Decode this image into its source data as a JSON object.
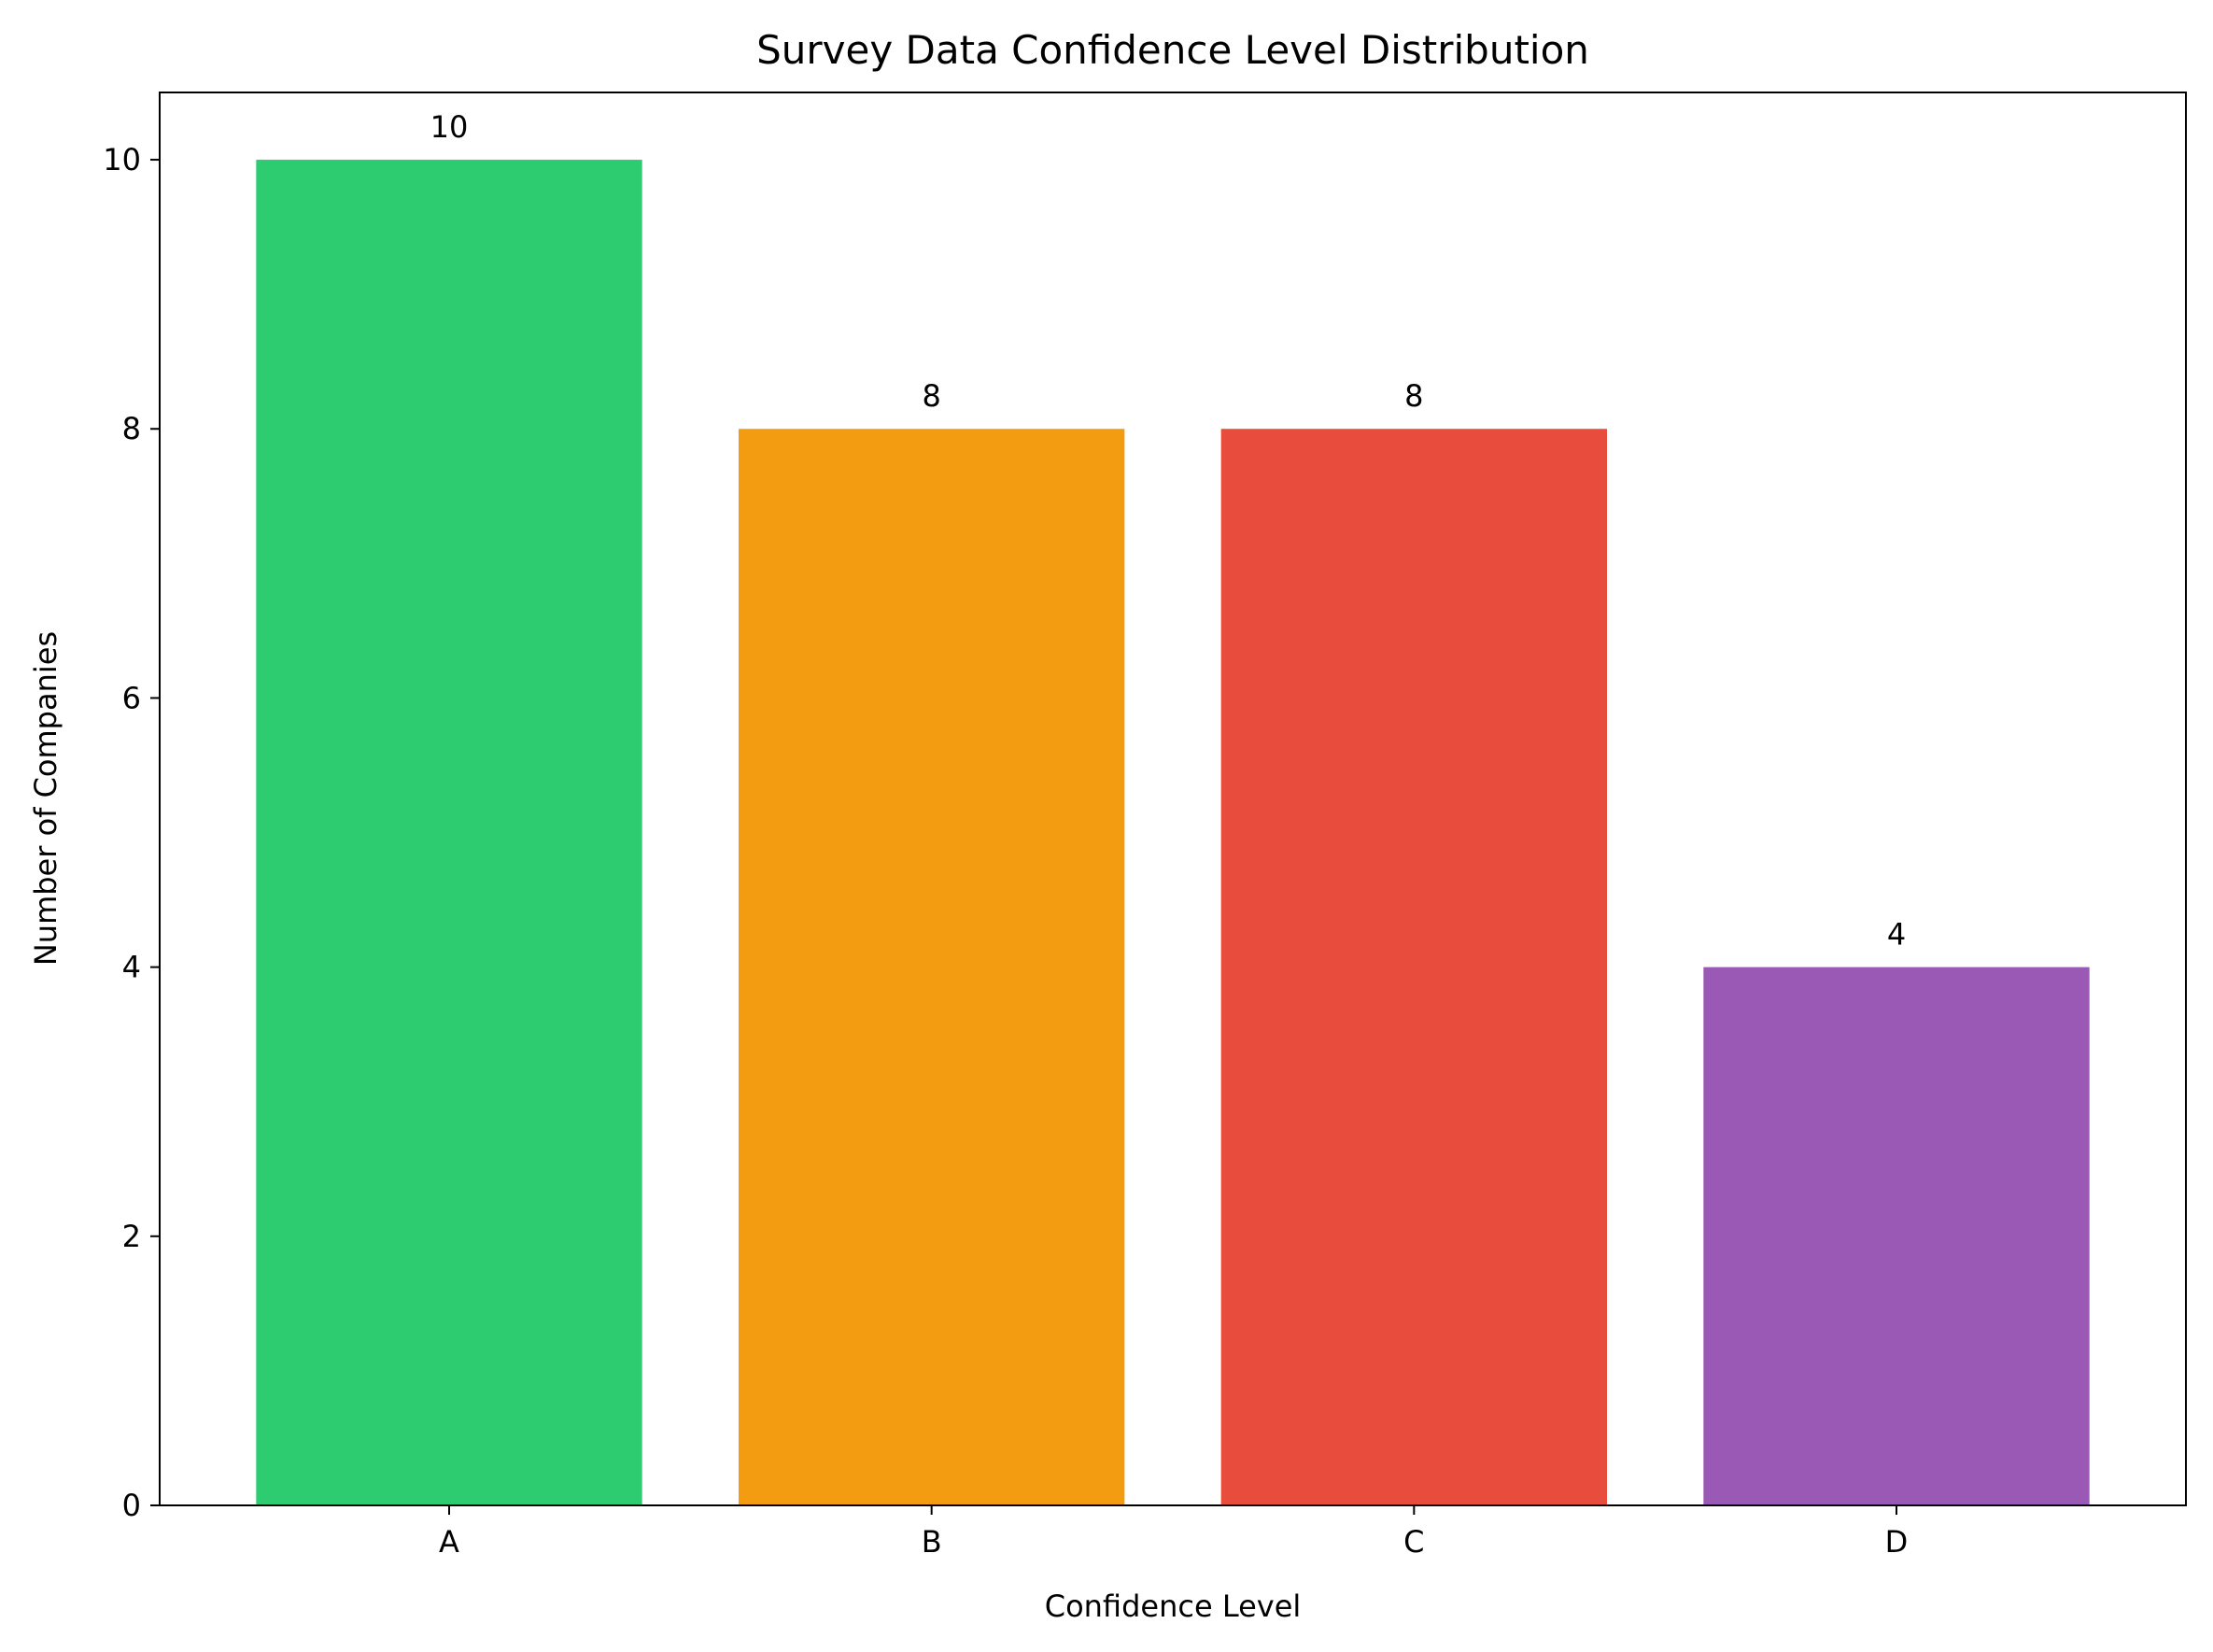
{
  "chart_data": {
    "type": "bar",
    "title": "Survey Data Confidence Level Distribution",
    "xlabel": "Confidence Level",
    "ylabel": "Number of Companies",
    "categories": [
      "A",
      "B",
      "C",
      "D"
    ],
    "values": [
      10,
      8,
      8,
      4
    ],
    "value_labels": [
      "10",
      "8",
      "8",
      "4"
    ],
    "colors": [
      "#2ecc71",
      "#f39c12",
      "#e74c3c",
      "#9b59b6"
    ],
    "ylim": [
      0,
      10.5
    ],
    "yticks": [
      0,
      2,
      4,
      6,
      8,
      10
    ],
    "ytick_labels": [
      "0",
      "2",
      "4",
      "6",
      "8",
      "10"
    ],
    "grid": false,
    "legend": "none"
  }
}
